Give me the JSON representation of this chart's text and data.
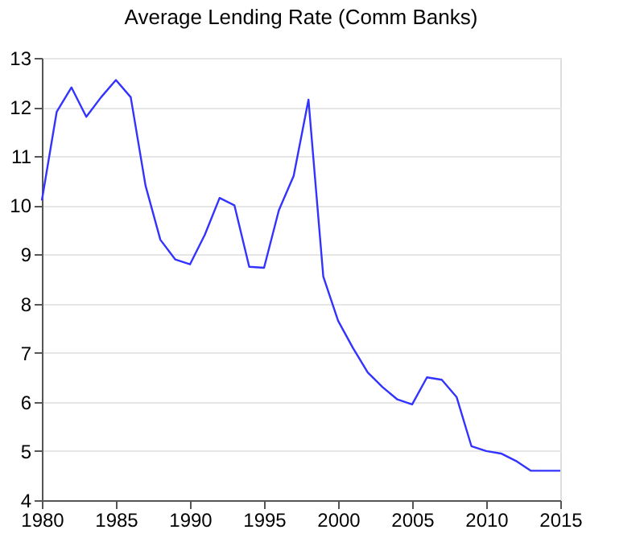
{
  "chart_data": {
    "type": "line",
    "title": "Average Lending Rate (Comm Banks)",
    "x": [
      1980,
      1981,
      1982,
      1983,
      1984,
      1985,
      1986,
      1987,
      1988,
      1989,
      1990,
      1991,
      1992,
      1993,
      1994,
      1995,
      1996,
      1997,
      1998,
      1999,
      2000,
      2001,
      2002,
      2003,
      2004,
      2005,
      2006,
      2007,
      2008,
      2009,
      2010,
      2011,
      2012,
      2013,
      2014,
      2015
    ],
    "series": [
      {
        "color": "#3333ff",
        "values": [
          10.1,
          11.9,
          12.4,
          11.8,
          12.2,
          12.55,
          12.2,
          10.4,
          9.3,
          8.9,
          8.8,
          9.4,
          10.15,
          10.0,
          8.75,
          8.73,
          9.9,
          10.6,
          12.15,
          8.55,
          7.65,
          7.1,
          6.6,
          6.3,
          6.05,
          5.95,
          6.5,
          6.45,
          6.1,
          5.1,
          5.0,
          4.95,
          4.8,
          4.6,
          4.6,
          4.6
        ]
      }
    ],
    "xlim": [
      1980,
      2015
    ],
    "xticks": [
      1980,
      1985,
      1990,
      1995,
      2000,
      2005,
      2010,
      2015
    ],
    "ylim": [
      4,
      13
    ],
    "yticks": [
      4,
      5,
      6,
      7,
      8,
      9,
      10,
      11,
      12,
      13
    ],
    "grid": "y",
    "line_style": "solid"
  }
}
